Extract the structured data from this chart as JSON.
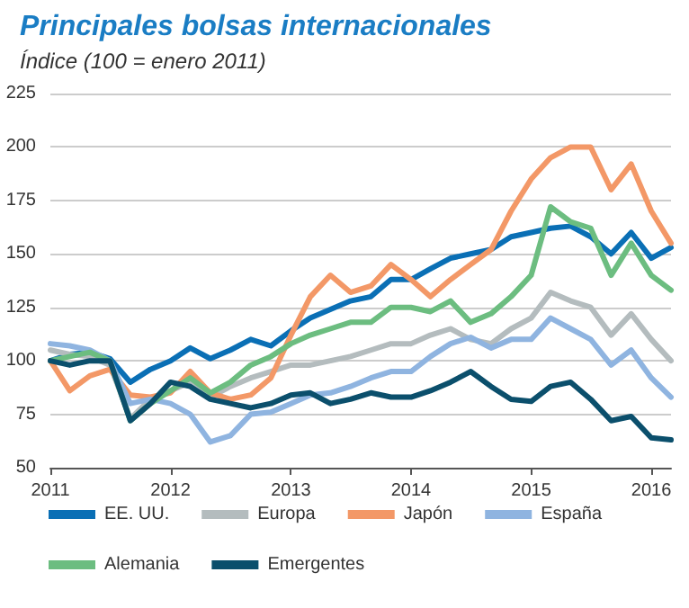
{
  "chart_data": {
    "type": "line",
    "title": "Principales bolsas internacionales",
    "subtitle": "Índice (100 = enero 2011)",
    "x": [
      "2011-01",
      "2011-03",
      "2011-05",
      "2011-07",
      "2011-09",
      "2011-11",
      "2012-01",
      "2012-03",
      "2012-05",
      "2012-07",
      "2012-09",
      "2012-11",
      "2013-01",
      "2013-03",
      "2013-05",
      "2013-07",
      "2013-09",
      "2013-11",
      "2014-01",
      "2014-03",
      "2014-05",
      "2014-07",
      "2014-09",
      "2014-11",
      "2015-01",
      "2015-03",
      "2015-05",
      "2015-07",
      "2015-09",
      "2015-11",
      "2016-01",
      "2016-03"
    ],
    "series": [
      {
        "name": "EE. UU.",
        "color": "#0a6fb5",
        "values": [
          100,
          103,
          104,
          101,
          90,
          96,
          100,
          106,
          101,
          105,
          110,
          107,
          114,
          120,
          124,
          128,
          130,
          138,
          138,
          143,
          148,
          150,
          152,
          158,
          160,
          162,
          163,
          158,
          150,
          160,
          148,
          153
        ]
      },
      {
        "name": "Europa",
        "color": "#b4bcbe",
        "values": [
          105,
          103,
          102,
          98,
          73,
          82,
          86,
          90,
          83,
          88,
          92,
          95,
          98,
          98,
          100,
          102,
          105,
          108,
          108,
          112,
          115,
          110,
          108,
          115,
          120,
          132,
          128,
          125,
          112,
          122,
          110,
          100
        ]
      },
      {
        "name": "Japón",
        "color": "#f39867",
        "values": [
          100,
          86,
          93,
          96,
          84,
          83,
          85,
          95,
          85,
          82,
          84,
          92,
          112,
          130,
          140,
          132,
          135,
          145,
          138,
          130,
          138,
          145,
          152,
          170,
          185,
          195,
          200,
          200,
          180,
          192,
          170,
          155
        ]
      },
      {
        "name": "España",
        "color": "#8fb4e0",
        "values": [
          108,
          107,
          105,
          100,
          80,
          82,
          80,
          75,
          62,
          65,
          75,
          76,
          80,
          84,
          85,
          88,
          92,
          95,
          95,
          102,
          108,
          111,
          106,
          110,
          110,
          120,
          115,
          110,
          98,
          105,
          92,
          83
        ]
      },
      {
        "name": "Alemania",
        "color": "#6cbd80",
        "values": [
          100,
          102,
          104,
          100,
          72,
          80,
          86,
          92,
          85,
          90,
          98,
          102,
          108,
          112,
          115,
          118,
          118,
          125,
          125,
          123,
          128,
          118,
          122,
          130,
          140,
          172,
          165,
          162,
          140,
          155,
          140,
          133
        ]
      },
      {
        "name": "Emergentes",
        "color": "#0b4f6c",
        "values": [
          100,
          98,
          100,
          100,
          72,
          80,
          90,
          88,
          82,
          80,
          78,
          80,
          84,
          85,
          80,
          82,
          85,
          83,
          83,
          86,
          90,
          95,
          88,
          82,
          81,
          88,
          90,
          82,
          72,
          74,
          64,
          63
        ]
      }
    ],
    "xlim": [
      "2011-01",
      "2016-03"
    ],
    "xticks": [
      "2011",
      "2012",
      "2013",
      "2014",
      "2015",
      "2016"
    ],
    "ylim": [
      50,
      225
    ],
    "yticks": [
      50,
      75,
      100,
      125,
      150,
      175,
      200,
      225
    ],
    "grid": "y",
    "legend": "bottom",
    "marker": "none",
    "line_style": "solid"
  }
}
